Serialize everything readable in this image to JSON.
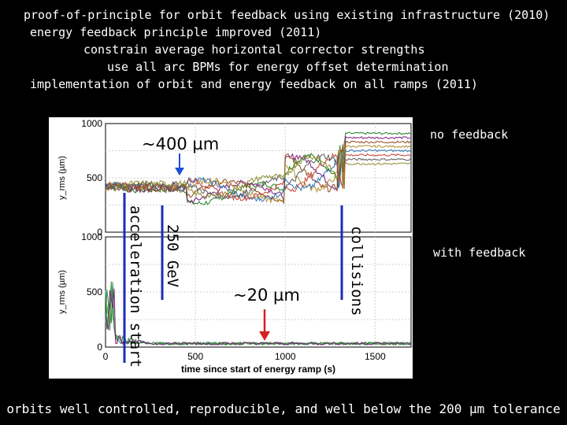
{
  "bullets": [
    "proof-of-principle for orbit feedback using existing infrastructure (2010)",
    "energy feedback principle improved (2011)",
    "constrain average horizontal corrector strengths",
    "use all arc BPMs for energy offset determination",
    "implementation of orbit and energy feedback on all ramps (2011)"
  ],
  "labels": {
    "no_feedback": "no feedback",
    "with_feedback": "with feedback",
    "top_annotation": "~400 µm",
    "bottom_annotation": "~20 µm",
    "acceleration_start": "acceleration start",
    "energy_250": "250 GeV",
    "collisions": "collisions"
  },
  "footer": "orbits well controlled, reproducible, and well below the 200 µm tolerance",
  "colors": {
    "background": "#000000",
    "text": "#ffffff",
    "marker_line": "#1f2bb8",
    "annotation_arrow_top": "#1f4fd6",
    "annotation_arrow_bottom": "#d61f1f"
  },
  "chart_data": [
    {
      "type": "line",
      "panel": "top",
      "caption": "no feedback",
      "ylabel": "y_rms (µm)",
      "yticks": [
        "1000",
        "500",
        "0"
      ],
      "ylim": [
        0,
        1000
      ],
      "xlim": [
        0,
        1700
      ],
      "grid": true,
      "series_colors": [
        "#1a7a1a",
        "#7a1a7a",
        "#8b4513",
        "#b08a2a",
        "#2a6ab0",
        "#c0392b",
        "#555555",
        "#8a8a2a"
      ],
      "features": {
        "flat_level_um": 400,
        "collisions_jump_um": 900
      }
    },
    {
      "type": "line",
      "panel": "bottom",
      "caption": "with feedback",
      "ylabel": "y_rms (µm)",
      "xlabel": "time since start of energy ramp (s)",
      "yticks": [
        "1000",
        "500",
        "0"
      ],
      "xticks": [
        "0",
        "500",
        "1000",
        "1500"
      ],
      "ylim": [
        0,
        1000
      ],
      "xlim": [
        0,
        1700
      ],
      "grid": true,
      "series_colors": [
        "#1a7a1a",
        "#2e8b57",
        "#3a9a3a",
        "#7a1a7a"
      ],
      "features": {
        "flat_level_um": 20
      }
    }
  ]
}
